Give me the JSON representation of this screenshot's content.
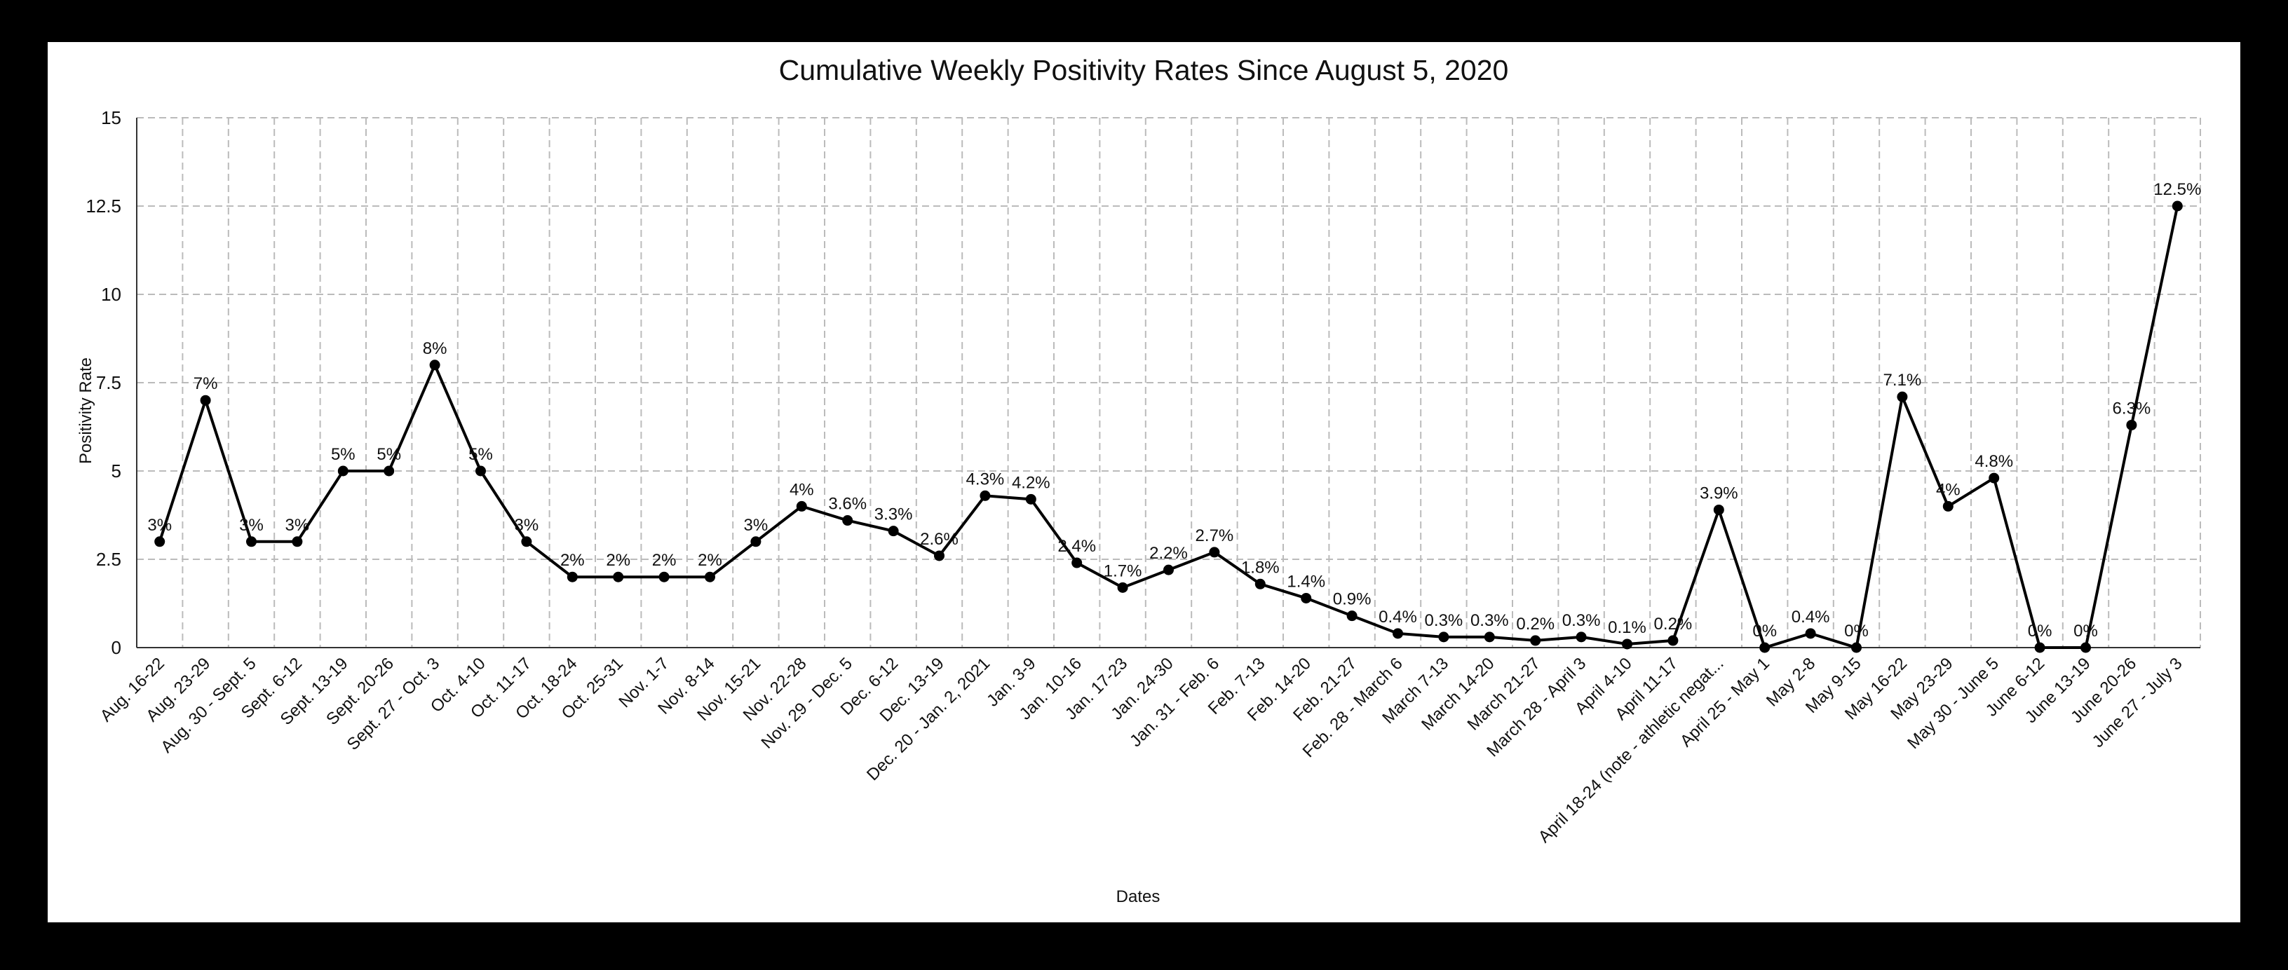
{
  "chart_data": {
    "type": "line",
    "title": "Cumulative Weekly Positivity Rates Since August 5, 2020",
    "xlabel": "Dates",
    "ylabel": "Positivity Rate",
    "ylim": [
      0,
      15
    ],
    "yticks": [
      "0",
      "2.5",
      "5",
      "7.5",
      "10",
      "12.5",
      "15"
    ],
    "grid": true,
    "legend": "none",
    "categories": [
      "Aug. 16-22",
      "Aug. 23-29",
      "Aug. 30 - Sept. 5",
      "Sept. 6-12",
      "Sept. 13-19",
      "Sept. 20-26",
      "Sept. 27 - Oct. 3",
      "Oct. 4-10",
      "Oct. 11-17",
      "Oct. 18-24",
      "Oct. 25-31",
      "Nov. 1-7",
      "Nov. 8-14",
      "Nov. 15-21",
      "Nov. 22-28",
      "Nov. 29 - Dec. 5",
      "Dec. 6-12",
      "Dec. 13-19",
      "Dec. 20 - Jan. 2, 2021",
      "Jan. 3-9",
      "Jan. 10-16",
      "Jan. 17-23",
      "Jan. 24-30",
      "Jan. 31 - Feb. 6",
      "Feb. 7-13",
      "Feb. 14-20",
      "Feb. 21-27",
      "Feb. 28 - March 6",
      "March 7-13",
      "March 14-20",
      "March 21-27",
      "March 28 - April 3",
      "April 4-10",
      "April 11-17",
      "April 18-24 (note - athletic negat...",
      "April 25 - May 1",
      "May 2-8",
      "May 9-15",
      "May 16-22",
      "May 23-29",
      "May 30 - June 5",
      "June 6-12",
      "June 13-19",
      "June 20-26",
      "June 27 - July 3"
    ],
    "values": [
      3,
      7,
      3,
      3,
      5,
      5,
      8,
      5,
      3,
      2,
      2,
      2,
      2,
      3,
      4,
      3.6,
      3.3,
      2.6,
      4.3,
      4.2,
      2.4,
      1.7,
      2.2,
      2.7,
      1.8,
      1.4,
      0.9,
      0.4,
      0.3,
      0.3,
      0.2,
      0.3,
      0.1,
      0.2,
      3.9,
      0,
      0.4,
      0,
      7.1,
      4,
      4.8,
      0,
      0,
      6.3,
      12.5
    ],
    "data_labels": [
      "3%",
      "7%",
      "3%",
      "3%",
      "5%",
      "5%",
      "8%",
      "5%",
      "3%",
      "2%",
      "2%",
      "2%",
      "2%",
      "3%",
      "4%",
      "3.6%",
      "3.3%",
      "2.6%",
      "4.3%",
      "4.2%",
      "2.4%",
      "1.7%",
      "2.2%",
      "2.7%",
      "1.8%",
      "1.4%",
      "0.9%",
      "0.4%",
      "0.3%",
      "0.3%",
      "0.2%",
      "0.3%",
      "0.1%",
      "0.2%",
      "3.9%",
      "0%",
      "0.4%",
      "0%",
      "7.1%",
      "4%",
      "4.8%",
      "0%",
      "0%",
      "6.3%",
      "12.5%"
    ],
    "colors": {
      "line": "#000000",
      "grid": "#bbbbbb",
      "frame": "#000000"
    }
  }
}
